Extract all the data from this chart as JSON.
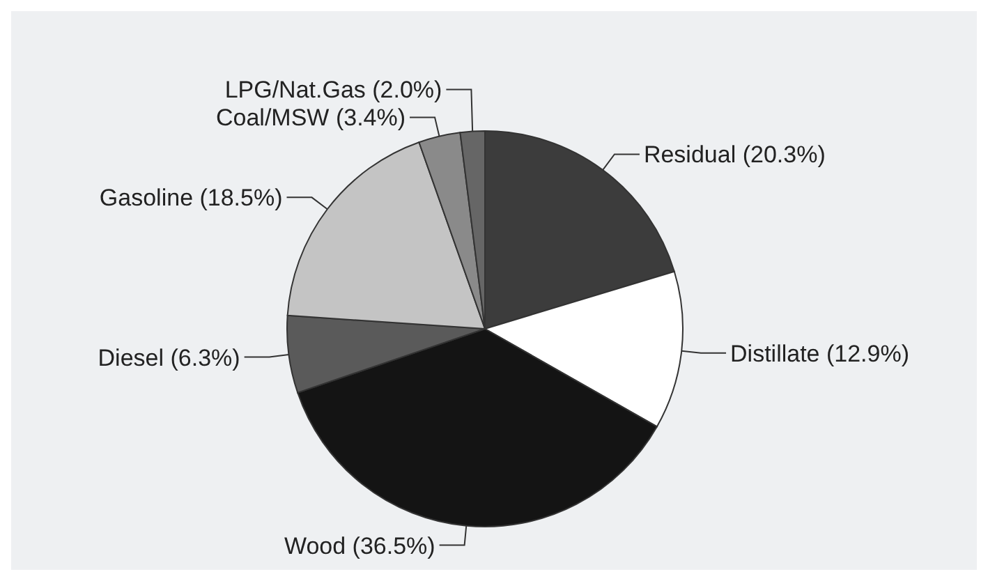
{
  "chart_data": {
    "type": "pie",
    "categories": [
      "Residual (20.3%)",
      "Distillate (12.9%)",
      "Wood (36.5%)",
      "Diesel (6.3%)",
      "Gasoline (18.5%)",
      "Coal/MSW (3.4%)",
      "LPG/Nat.Gas (2.0%)"
    ],
    "values": [
      20.3,
      12.9,
      36.5,
      6.3,
      18.5,
      3.4,
      2.0
    ],
    "colors": [
      "#3c3c3c",
      "#ffffff",
      "#141414",
      "#5a5a5a",
      "#c4c4c4",
      "#8a8a8a",
      "#666666"
    ]
  }
}
